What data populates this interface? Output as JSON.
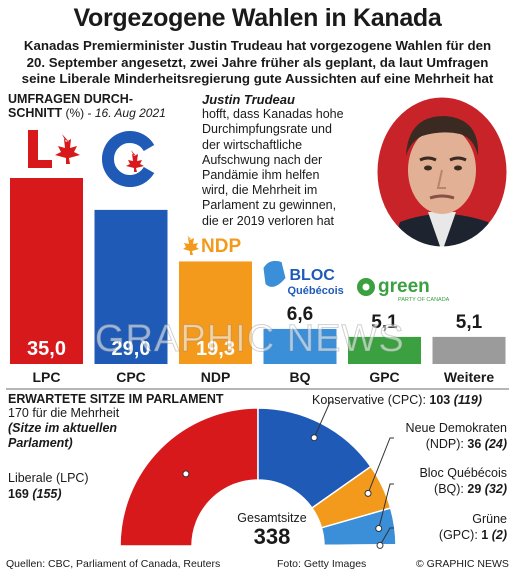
{
  "header": {
    "title": "Vorgezogene Wahlen in Kanada",
    "subtitle_lines": [
      "Kanadas Premierminister Justin Trudeau hat vorgezogene Wahlen für den",
      "20. September angesetzt, zwei Jahre früher als geplant, da laut Umfragen",
      "seine Liberale Minderheitsregierung gute Aussichten auf eine Mehrheit hat"
    ]
  },
  "poll": {
    "heading_line1": "UMFRAGEN DURCH-",
    "heading_line2": "SCHNITT",
    "heading_unit": "(%)",
    "heading_dash": " - ",
    "heading_date": "16. Aug 2021"
  },
  "quote": {
    "name": "Justin Trudeau",
    "lines": [
      "hofft, dass Kanadas hohe",
      "Durchimpfungsrate und",
      "der wirtschaftliche",
      "Aufschwung nach der",
      "Pandämie ihm helfen",
      "wird, die Mehrheit im",
      "Parlament zu gewinnen,",
      "die er 2019 verloren hat"
    ]
  },
  "logos": {
    "ndp": "NDP",
    "bloc_line1": "BLOC",
    "bloc_line2": "Québécois",
    "green": "green",
    "green_sub": "PARTY OF CANADA"
  },
  "chart_data": [
    {
      "type": "bar",
      "categories": [
        "LPC",
        "CPC",
        "NDP",
        "BQ",
        "GPC",
        "Weitere"
      ],
      "values": [
        35.0,
        29.0,
        19.3,
        6.6,
        5.1,
        5.1
      ],
      "value_labels": [
        "35,0",
        "29,0",
        "19,3",
        "6,6",
        "5,1",
        "5,1"
      ],
      "colors": [
        "#d7191c",
        "#1f5bb6",
        "#f39a1d",
        "#3b8ed8",
        "#3aa040",
        "#9b9b9b"
      ],
      "ylim": [
        0,
        35
      ]
    },
    {
      "type": "pie",
      "categories": [
        "LPC",
        "CPC",
        "NDP",
        "BQ",
        "GPC"
      ],
      "values": [
        169,
        103,
        36,
        29,
        1
      ],
      "previous": [
        155,
        119,
        24,
        32,
        2
      ],
      "colors": [
        "#d7191c",
        "#1f5bb6",
        "#f39a1d",
        "#3b8ed8",
        "#3aa040"
      ]
    }
  ],
  "seats": {
    "heading": "ERWARTETE SITZE IM PARLAMENT",
    "majority": "170 für die Mehrheit",
    "note_line1": "(Sitze im aktuellen",
    "note_line2": "Parlament)",
    "total_label": "Gesamtsitze",
    "total_value": "338",
    "labels": [
      {
        "line1": "Liberale (LPC)",
        "line2_pre": "",
        "cur": "169",
        "prev": "(155)"
      },
      {
        "line1": "",
        "line2_pre": "Konservative (CPC): ",
        "cur": "103",
        "prev": "(119)"
      },
      {
        "line1": "Neue Demokraten",
        "line2_pre": "(NDP): ",
        "cur": "36",
        "prev": "(24)"
      },
      {
        "line1": "Bloc Québécois",
        "line2_pre": "(BQ): ",
        "cur": "29",
        "prev": "(32)"
      },
      {
        "line1": "Grüne",
        "line2_pre": "(GPC): ",
        "cur": "1",
        "prev": "(2)"
      }
    ]
  },
  "footer": {
    "sources": "Quellen: CBC, Parliament of Canada, Reuters",
    "photo": "Foto: Getty Images",
    "copyright": "© GRAPHIC NEWS"
  },
  "watermark": "GRAPHIC NEWS"
}
